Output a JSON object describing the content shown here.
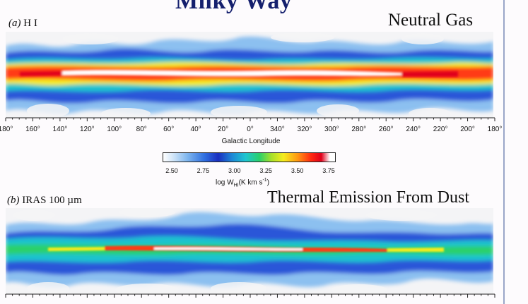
{
  "slide": {
    "title": "Milky Way"
  },
  "panel_a": {
    "tag_prefix": "(a)",
    "tag_text": "H I",
    "title": "Neutral Gas",
    "axis_ticks": [
      "180°",
      "160°",
      "140°",
      "120°",
      "100°",
      "80°",
      "60°",
      "40°",
      "20°",
      "0°",
      "340°",
      "320°",
      "300°",
      "280°",
      "260°",
      "240°",
      "220°",
      "200°",
      "180°"
    ],
    "axis_title": "Galactic Longitude"
  },
  "colorbar": {
    "ticks": [
      "2.50",
      "2.75",
      "3.00",
      "3.25",
      "3.50",
      "3.75"
    ],
    "title_main": "log W",
    "title_sub": "HI",
    "title_units": "(K km s",
    "title_sup": "-1",
    "title_close": ")",
    "scale_colors": [
      "#ffffff",
      "#7fb6ee",
      "#1a2fc0",
      "#1fc6d0",
      "#2ad06a",
      "#f5ec1e",
      "#ff9a12",
      "#ff2a10",
      "#e0001a",
      "#ffffff"
    ]
  },
  "panel_b": {
    "tag_prefix": "(b)",
    "tag_text": "IRAS 100 µm",
    "title": "Thermal Emission From Dust"
  }
}
